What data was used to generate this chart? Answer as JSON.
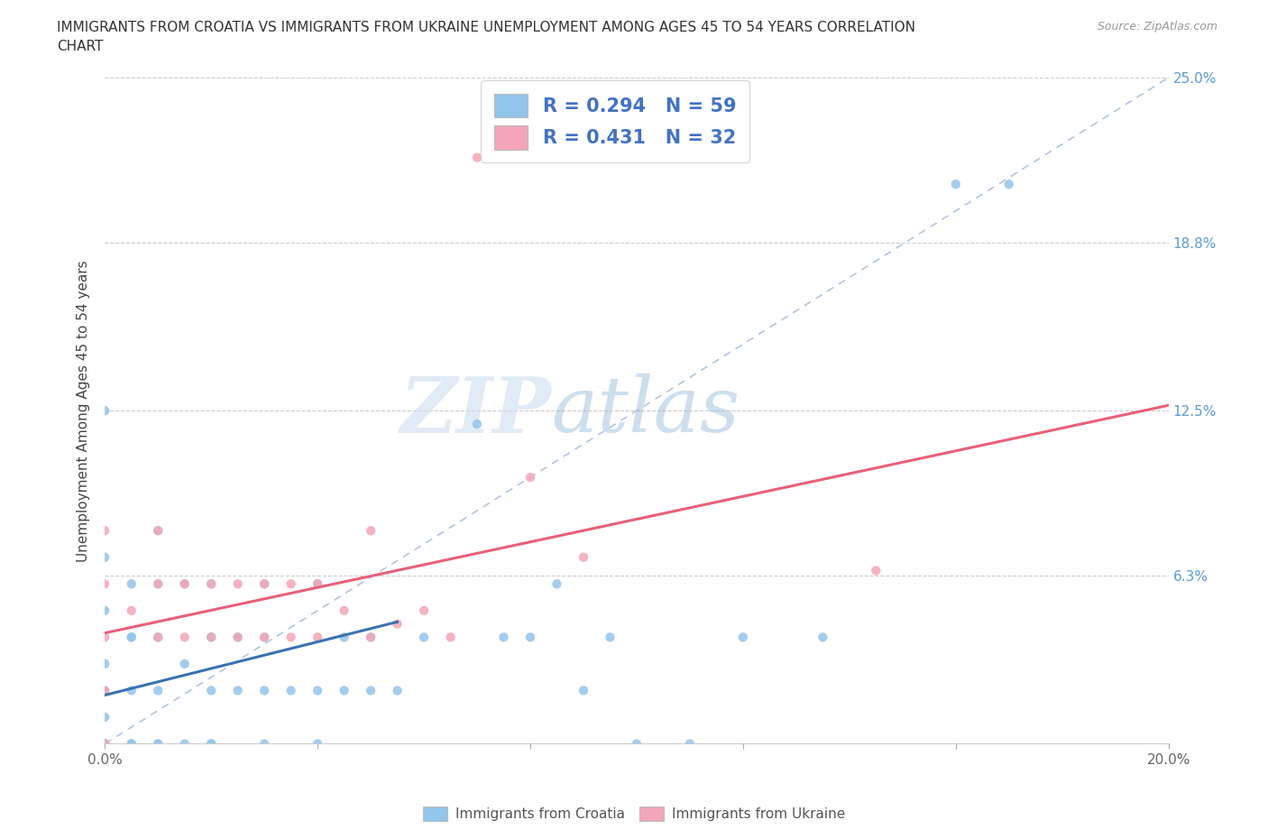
{
  "title_line1": "IMMIGRANTS FROM CROATIA VS IMMIGRANTS FROM UKRAINE UNEMPLOYMENT AMONG AGES 45 TO 54 YEARS CORRELATION",
  "title_line2": "CHART",
  "source_text": "Source: ZipAtlas.com",
  "ylabel": "Unemployment Among Ages 45 to 54 years",
  "xlim": [
    0.0,
    0.2
  ],
  "ylim": [
    0.0,
    0.25
  ],
  "croatia_color": "#92C5EC",
  "ukraine_color": "#F4A6B8",
  "croatia_line_color": "#3B72B0",
  "ukraine_line_color": "#E8607A",
  "diagonal_line_color": "#AABFDA",
  "R_croatia": 0.294,
  "N_croatia": 59,
  "R_ukraine": 0.431,
  "N_ukraine": 32,
  "legend_label_croatia": "Immigrants from Croatia",
  "legend_label_ukraine": "Immigrants from Ukraine",
  "watermark_zip": "ZIP",
  "watermark_atlas": "atlas",
  "legend_text_color": "#4472C4",
  "right_axis_color": "#5B9BD5",
  "croatia_x": [
    0.0,
    0.0,
    0.0,
    0.0,
    0.0,
    0.0,
    0.0,
    0.0,
    0.0,
    0.0,
    0.005,
    0.005,
    0.005,
    0.005,
    0.005,
    0.01,
    0.01,
    0.01,
    0.01,
    0.01,
    0.01,
    0.015,
    0.015,
    0.015,
    0.02,
    0.02,
    0.02,
    0.02,
    0.02,
    0.025,
    0.025,
    0.03,
    0.03,
    0.03,
    0.03,
    0.035,
    0.04,
    0.04,
    0.04,
    0.045,
    0.045,
    0.05,
    0.05,
    0.055,
    0.06,
    0.07,
    0.075,
    0.08,
    0.085,
    0.09,
    0.095,
    0.1,
    0.11,
    0.12,
    0.135,
    0.16,
    0.17,
    0.005,
    0.0
  ],
  "croatia_y": [
    0.0,
    0.0,
    0.0,
    0.0,
    0.0,
    0.01,
    0.02,
    0.03,
    0.05,
    0.07,
    0.0,
    0.0,
    0.02,
    0.04,
    0.06,
    0.0,
    0.0,
    0.02,
    0.04,
    0.06,
    0.08,
    0.0,
    0.03,
    0.06,
    0.0,
    0.0,
    0.02,
    0.04,
    0.06,
    0.02,
    0.04,
    0.0,
    0.02,
    0.04,
    0.06,
    0.02,
    0.0,
    0.02,
    0.06,
    0.02,
    0.04,
    0.02,
    0.04,
    0.02,
    0.04,
    0.12,
    0.04,
    0.04,
    0.06,
    0.02,
    0.04,
    0.0,
    0.0,
    0.04,
    0.04,
    0.21,
    0.21,
    0.04,
    0.125
  ],
  "ukraine_x": [
    0.0,
    0.0,
    0.0,
    0.0,
    0.0,
    0.0,
    0.01,
    0.01,
    0.01,
    0.015,
    0.015,
    0.02,
    0.02,
    0.025,
    0.025,
    0.03,
    0.03,
    0.035,
    0.035,
    0.04,
    0.04,
    0.045,
    0.05,
    0.05,
    0.055,
    0.06,
    0.065,
    0.07,
    0.08,
    0.09,
    0.145,
    0.005
  ],
  "ukraine_y": [
    0.0,
    0.0,
    0.02,
    0.04,
    0.06,
    0.08,
    0.04,
    0.06,
    0.08,
    0.04,
    0.06,
    0.04,
    0.06,
    0.04,
    0.06,
    0.04,
    0.06,
    0.04,
    0.06,
    0.04,
    0.06,
    0.05,
    0.04,
    0.08,
    0.045,
    0.05,
    0.04,
    0.22,
    0.1,
    0.07,
    0.065,
    0.05
  ]
}
